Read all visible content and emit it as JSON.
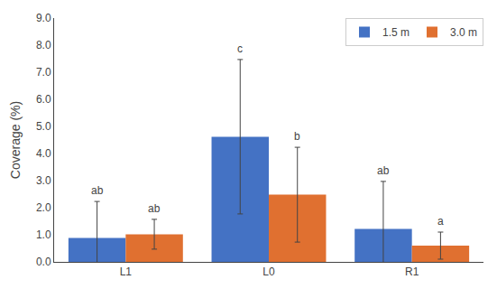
{
  "chart_data": {
    "type": "bar",
    "categories": [
      "L1",
      "L0",
      "R1"
    ],
    "series": [
      {
        "name": "1.5 m",
        "color": "#4472C4",
        "values": [
          0.88,
          4.62,
          1.22
        ],
        "errors": [
          1.35,
          2.85,
          1.75
        ],
        "annotations": [
          "ab",
          "c",
          "ab"
        ]
      },
      {
        "name": "3.0 m",
        "color": "#E07030",
        "values": [
          1.02,
          2.48,
          0.6
        ],
        "errors": [
          0.55,
          1.75,
          0.5
        ],
        "annotations": [
          "ab",
          "b",
          "a"
        ]
      }
    ],
    "ylabel": "Coverage (%)",
    "ylim": [
      0.0,
      9.0
    ],
    "yticks": [
      {
        "value": 0,
        "label": "0.0"
      },
      {
        "value": 1,
        "label": "1.0"
      },
      {
        "value": 2,
        "label": "2.0"
      },
      {
        "value": 3,
        "label": "3.0"
      },
      {
        "value": 4,
        "label": "4.0"
      },
      {
        "value": 5,
        "label": "5.0"
      },
      {
        "value": 6,
        "label": "6.0"
      },
      {
        "value": 7,
        "label": "7.0"
      },
      {
        "value": 8,
        "label": "8.0"
      },
      {
        "value": 9,
        "label": "9.0"
      }
    ],
    "grid": false,
    "legend": "upper right"
  }
}
